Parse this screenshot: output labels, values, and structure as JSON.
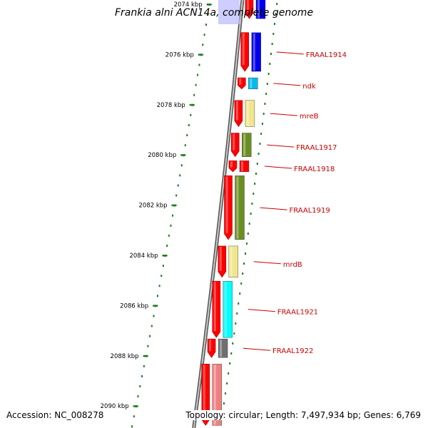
{
  "title": "Frankia alni ACN14a, complete genome",
  "footer": {
    "accession": "Accession: NC_008278",
    "stats": "Topology: circular; Length: 7,497,934 bp; Genes: 6,769"
  },
  "colors": {
    "backbone": "#888888",
    "scale": "#1a7f1a",
    "label": "#cc0000"
  },
  "scale": {
    "unit": "kbp",
    "ticks": [
      "2074 kbp",
      "2076 kbp",
      "2078 kbp",
      "2080 kbp",
      "2082 kbp",
      "2084 kbp",
      "2086 kbp",
      "2088 kbp",
      "2090 kbp"
    ]
  },
  "genes": [
    {
      "name": "FRAAL1914",
      "start_kbp": 2075.1,
      "end_kbp": 2076.7,
      "color": "#0000ee"
    },
    {
      "name": "ndk",
      "start_kbp": 2076.9,
      "end_kbp": 2077.4,
      "color": "#00bbee"
    },
    {
      "name": "mreB",
      "start_kbp": 2077.8,
      "end_kbp": 2078.9,
      "color": "#f0e68c"
    },
    {
      "name": "FRAAL1917",
      "start_kbp": 2079.1,
      "end_kbp": 2080.1,
      "color": "#6b8e23"
    },
    {
      "name": "FRAAL1918",
      "start_kbp": 2080.2,
      "end_kbp": 2080.7,
      "color": "#ff0000"
    },
    {
      "name": "FRAAL1919",
      "start_kbp": 2080.8,
      "end_kbp": 2083.4,
      "color": "#6b8e23"
    },
    {
      "name": "mrdB",
      "start_kbp": 2083.6,
      "end_kbp": 2084.9,
      "color": "#f0e68c"
    },
    {
      "name": "FRAAL1921",
      "start_kbp": 2085.0,
      "end_kbp": 2087.3,
      "color": "#00ffff"
    },
    {
      "name": "FRAAL1922",
      "start_kbp": 2087.3,
      "end_kbp": 2088.1,
      "color": "#707070"
    }
  ],
  "extra_features": [
    {
      "start_kbp": 2073.6,
      "end_kbp": 2074.6,
      "color": "#0000ee"
    },
    {
      "start_kbp": 2088.3,
      "end_kbp": 2090.8,
      "color": "#f08080"
    }
  ]
}
